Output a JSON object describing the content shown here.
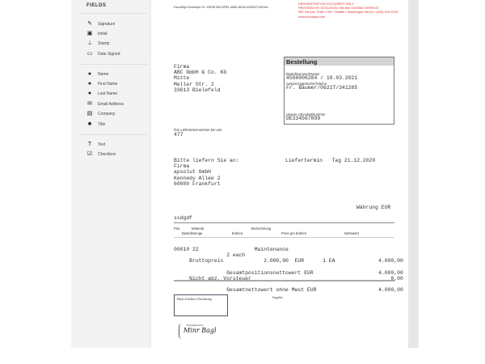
{
  "sidebar": {
    "title": "FIELDS",
    "groups": [
      [
        {
          "label": "Signature",
          "icon": "pen-icon"
        },
        {
          "label": "Initial",
          "icon": "initial-icon"
        },
        {
          "label": "Stamp",
          "icon": "stamp-icon"
        },
        {
          "label": "Date Signed",
          "icon": "calendar-icon"
        }
      ],
      [
        {
          "label": "Name",
          "icon": "person-icon"
        },
        {
          "label": "First Name",
          "icon": "person-icon"
        },
        {
          "label": "Last Name",
          "icon": "person-icon"
        },
        {
          "label": "Email Address",
          "icon": "envelope-icon"
        },
        {
          "label": "Company",
          "icon": "building-icon"
        },
        {
          "label": "Title",
          "icon": "briefcase-icon"
        }
      ],
      [
        {
          "label": "Text",
          "icon": "text-icon"
        },
        {
          "label": "Checkbox",
          "icon": "checkbox-icon"
        }
      ]
    ]
  },
  "doc": {
    "envelope_id": "DocuSign Envelope ID: 19E3978D-5FB1-456D-8E34-815537C8910A",
    "demo": [
      "DEMONSTRATION DOCUMENT ONLY",
      "PROVIDED BY DOCUSIGN ONLINE SIGNING SERVICE",
      "999 3rd Ave, Suite 1700  •  Seattle • Washington 98104 • (206) 219-0200",
      "www.docusign.com"
    ],
    "address": "Firma\nABC GmbH & Co. KG\nMitte\nMeller Str. 2\n33613 Bielefeld",
    "box": {
      "title": "Bestellung",
      "order_label": "Bestellnummer/Datum",
      "order_value": "4500006284 / 18.03.2021",
      "contact_label": "Ansprechpartner/in/Telefon",
      "contact_value": "Fr. Bäumer/06227/341285",
      "vat_label": "Unsere USt-IdentNummer",
      "vat_value": "DE334567899"
    },
    "supplier_label": "Ihre Lieferantennummer bei uns",
    "supplier_value": "477",
    "deliver_to": "Bitte liefern Sie an:\nFirma\napsolut GmbH\nKennedy Allee 2\n60000 Frankfurt",
    "delivery_date": "Liefertermin   Tag 21.12.2020",
    "currency": "Währung EUR",
    "note": "ssdgdf",
    "headers": {
      "pos": "Pos.",
      "material": "Material",
      "qty": "Bestellmenge",
      "unit": "Einheit",
      "desc": "Bezeichnung",
      "price": "Preis pro Einheit",
      "net": "Nettowert"
    },
    "lines": "00010 22                  Maintenance\n                 2 each\n     Bruttopreis             2.000,00  EUR      1 EA              4.000,00\n\n                 Gesamtpositionsnettowert EUR                     4.000,00\n     Nicht abz. Vorsteuer                                             0,00",
    "total": "                 Gesamtnettowert ohne Mwst EUR                    4.000,00",
    "supplier_sig": "Supplier",
    "sig_box": "Head of Indirect Purchasing",
    "docusigned_by": "DocuSigned by:",
    "signature": "Minr Bagl"
  }
}
